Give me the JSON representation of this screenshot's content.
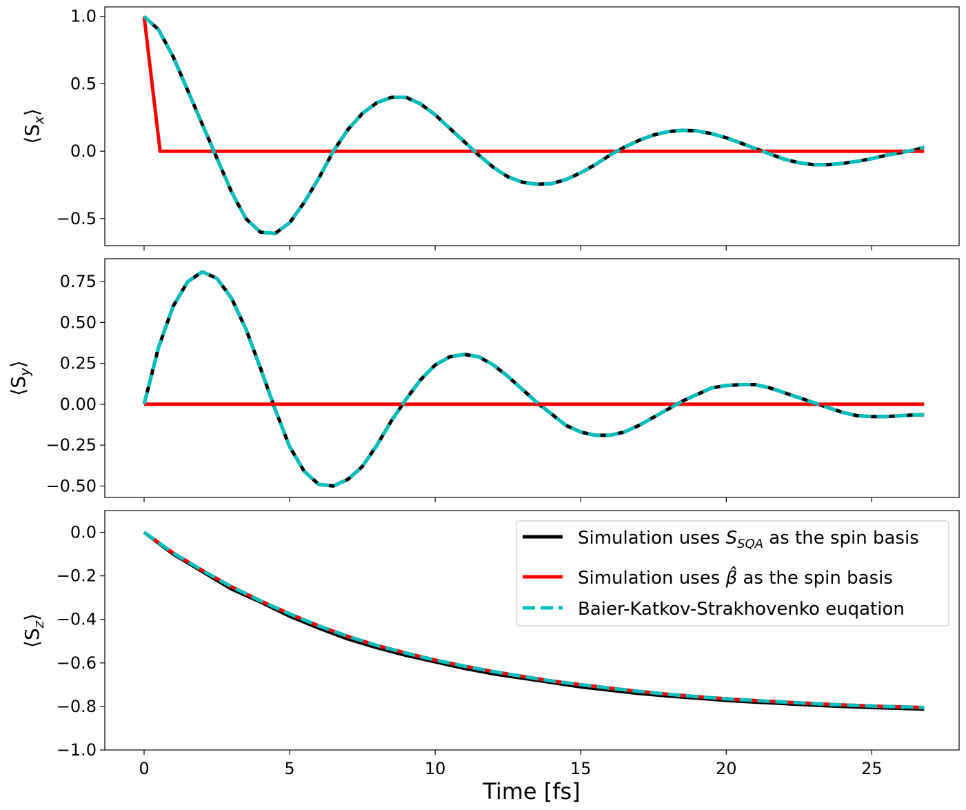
{
  "chart_data": [
    {
      "type": "line",
      "panel": "top",
      "ylabel": "⟨S_x⟩",
      "ylabel_main": "⟨S",
      "ylabel_sub": "x",
      "ylabel_close": "⟩",
      "xlim": [
        -1.35,
        28.0
      ],
      "ylim": [
        -0.7,
        1.07
      ],
      "yticks": [
        1.0,
        0.5,
        0.0,
        -0.5
      ],
      "ytick_labels": [
        "1.0",
        "0.5",
        "0.0",
        "−0.5"
      ],
      "series": [
        {
          "name": "Simulation uses S_SQA as the spin basis",
          "color": "#000000",
          "style": "solid",
          "x": [
            0,
            0.5,
            1,
            1.5,
            2,
            2.5,
            3,
            3.5,
            4,
            4.5,
            5,
            5.5,
            6,
            6.5,
            7,
            7.5,
            8,
            8.5,
            9,
            9.5,
            10,
            10.5,
            11,
            11.5,
            12,
            12.5,
            13,
            13.5,
            14,
            14.5,
            15,
            15.5,
            16,
            16.5,
            17,
            17.5,
            18,
            18.5,
            19,
            19.5,
            20,
            20.5,
            21,
            21.5,
            22,
            22.5,
            23,
            23.5,
            24,
            24.5,
            25,
            25.5,
            26,
            26.5,
            26.8
          ],
          "y": [
            1.0,
            0.9,
            0.7,
            0.45,
            0.2,
            -0.05,
            -0.3,
            -0.5,
            -0.6,
            -0.61,
            -0.53,
            -0.38,
            -0.2,
            0.0,
            0.16,
            0.28,
            0.36,
            0.4,
            0.4,
            0.35,
            0.27,
            0.17,
            0.07,
            -0.03,
            -0.12,
            -0.19,
            -0.23,
            -0.245,
            -0.24,
            -0.21,
            -0.16,
            -0.1,
            -0.03,
            0.03,
            0.08,
            0.12,
            0.145,
            0.155,
            0.15,
            0.13,
            0.1,
            0.06,
            0.02,
            -0.02,
            -0.06,
            -0.085,
            -0.1,
            -0.1,
            -0.09,
            -0.075,
            -0.055,
            -0.03,
            -0.01,
            0.01,
            0.03
          ]
        },
        {
          "name": "Simulation uses β̂ as the spin basis",
          "color": "#ff0000",
          "style": "solid",
          "x": [
            0,
            0.55,
            26.8
          ],
          "y": [
            1.0,
            0.0,
            0.0
          ]
        },
        {
          "name": "Baier-Katkov-Strakhovenko euqation",
          "color": "#00bfbf",
          "style": "dashed",
          "x": [
            0,
            0.5,
            1,
            1.5,
            2,
            2.5,
            3,
            3.5,
            4,
            4.5,
            5,
            5.5,
            6,
            6.5,
            7,
            7.5,
            8,
            8.5,
            9,
            9.5,
            10,
            10.5,
            11,
            11.5,
            12,
            12.5,
            13,
            13.5,
            14,
            14.5,
            15,
            15.5,
            16,
            16.5,
            17,
            17.5,
            18,
            18.5,
            19,
            19.5,
            20,
            20.5,
            21,
            21.5,
            22,
            22.5,
            23,
            23.5,
            24,
            24.5,
            25,
            25.5,
            26,
            26.5,
            26.8
          ],
          "y": [
            1.0,
            0.9,
            0.7,
            0.45,
            0.2,
            -0.05,
            -0.3,
            -0.5,
            -0.6,
            -0.61,
            -0.53,
            -0.38,
            -0.2,
            0.0,
            0.16,
            0.28,
            0.36,
            0.4,
            0.4,
            0.35,
            0.27,
            0.17,
            0.07,
            -0.03,
            -0.12,
            -0.19,
            -0.23,
            -0.245,
            -0.24,
            -0.21,
            -0.16,
            -0.1,
            -0.03,
            0.03,
            0.08,
            0.12,
            0.145,
            0.155,
            0.15,
            0.13,
            0.1,
            0.06,
            0.02,
            -0.02,
            -0.06,
            -0.085,
            -0.1,
            -0.1,
            -0.09,
            -0.075,
            -0.055,
            -0.03,
            -0.01,
            0.01,
            0.03
          ]
        }
      ]
    },
    {
      "type": "line",
      "panel": "middle",
      "ylabel": "⟨S_y⟩",
      "ylabel_main": "⟨S",
      "ylabel_sub": "y",
      "ylabel_close": "⟩",
      "xlim": [
        -1.35,
        28.0
      ],
      "ylim": [
        -0.57,
        0.89
      ],
      "yticks": [
        0.75,
        0.5,
        0.25,
        0.0,
        -0.25,
        -0.5
      ],
      "ytick_labels": [
        "0.75",
        "0.50",
        "0.25",
        "0.00",
        "−0.25",
        "−0.50"
      ],
      "series": [
        {
          "name": "Simulation uses S_SQA as the spin basis",
          "color": "#000000",
          "style": "solid",
          "x": [
            0,
            0.5,
            1,
            1.5,
            2,
            2.5,
            3,
            3.5,
            4,
            4.5,
            5,
            5.5,
            6,
            6.5,
            7,
            7.5,
            8,
            8.5,
            9,
            9.5,
            10,
            10.5,
            11,
            11.5,
            12,
            12.5,
            13,
            13.5,
            14,
            14.5,
            15,
            15.5,
            16,
            16.5,
            17,
            17.5,
            18,
            18.5,
            19,
            19.5,
            20,
            20.5,
            21,
            21.5,
            22,
            22.5,
            23,
            23.5,
            24,
            24.5,
            25,
            25.5,
            26,
            26.5,
            26.8
          ],
          "y": [
            0.0,
            0.35,
            0.6,
            0.75,
            0.81,
            0.77,
            0.65,
            0.46,
            0.22,
            -0.03,
            -0.26,
            -0.41,
            -0.49,
            -0.5,
            -0.46,
            -0.38,
            -0.25,
            -0.1,
            0.03,
            0.15,
            0.24,
            0.29,
            0.305,
            0.29,
            0.24,
            0.17,
            0.09,
            0.01,
            -0.06,
            -0.13,
            -0.17,
            -0.19,
            -0.19,
            -0.17,
            -0.13,
            -0.08,
            -0.03,
            0.02,
            0.06,
            0.1,
            0.115,
            0.12,
            0.12,
            0.1,
            0.07,
            0.04,
            0.01,
            -0.02,
            -0.05,
            -0.07,
            -0.075,
            -0.075,
            -0.07,
            -0.065,
            -0.065
          ]
        },
        {
          "name": "Simulation uses β̂ as the spin basis",
          "color": "#ff0000",
          "style": "solid",
          "x": [
            0,
            26.8
          ],
          "y": [
            0.0,
            0.0
          ]
        },
        {
          "name": "Baier-Katkov-Strakhovenko euqation",
          "color": "#00bfbf",
          "style": "dashed",
          "x": [
            0,
            0.5,
            1,
            1.5,
            2,
            2.5,
            3,
            3.5,
            4,
            4.5,
            5,
            5.5,
            6,
            6.5,
            7,
            7.5,
            8,
            8.5,
            9,
            9.5,
            10,
            10.5,
            11,
            11.5,
            12,
            12.5,
            13,
            13.5,
            14,
            14.5,
            15,
            15.5,
            16,
            16.5,
            17,
            17.5,
            18,
            18.5,
            19,
            19.5,
            20,
            20.5,
            21,
            21.5,
            22,
            22.5,
            23,
            23.5,
            24,
            24.5,
            25,
            25.5,
            26,
            26.5,
            26.8
          ],
          "y": [
            0.0,
            0.35,
            0.6,
            0.75,
            0.81,
            0.77,
            0.65,
            0.46,
            0.22,
            -0.03,
            -0.26,
            -0.41,
            -0.49,
            -0.5,
            -0.46,
            -0.38,
            -0.25,
            -0.1,
            0.03,
            0.15,
            0.24,
            0.29,
            0.305,
            0.29,
            0.24,
            0.17,
            0.09,
            0.01,
            -0.06,
            -0.13,
            -0.17,
            -0.19,
            -0.19,
            -0.17,
            -0.13,
            -0.08,
            -0.03,
            0.02,
            0.06,
            0.1,
            0.115,
            0.12,
            0.12,
            0.1,
            0.07,
            0.04,
            0.01,
            -0.02,
            -0.05,
            -0.07,
            -0.075,
            -0.075,
            -0.07,
            -0.065,
            -0.065
          ]
        }
      ]
    },
    {
      "type": "line",
      "panel": "bottom",
      "ylabel": "⟨S_z⟩",
      "ylabel_main": "⟨S",
      "ylabel_sub": "z",
      "ylabel_close": "⟩",
      "xlabel": "Time [fs]",
      "xlim": [
        -1.35,
        28.0
      ],
      "ylim": [
        -1.0,
        0.1
      ],
      "xticks": [
        0,
        5,
        10,
        15,
        20,
        25
      ],
      "xtick_labels": [
        "0",
        "5",
        "10",
        "15",
        "20",
        "25"
      ],
      "yticks": [
        0.0,
        -0.2,
        -0.4,
        -0.6,
        -0.8,
        -1.0
      ],
      "ytick_labels": [
        "0.0",
        "−0.2",
        "−0.4",
        "−0.6",
        "−0.8",
        "−1.0"
      ],
      "legend_position": "top-right",
      "series": [
        {
          "name": "Simulation uses S_SQA as the spin basis",
          "color": "#000000",
          "style": "solid",
          "x": [
            0,
            1,
            2,
            3,
            4,
            5,
            6,
            7,
            8,
            9,
            10,
            11,
            12,
            13,
            14,
            15,
            16,
            17,
            18,
            19,
            20,
            21,
            22,
            23,
            24,
            25,
            26,
            26.8
          ],
          "y": [
            0.0,
            -0.1,
            -0.18,
            -0.26,
            -0.32,
            -0.385,
            -0.44,
            -0.49,
            -0.53,
            -0.565,
            -0.595,
            -0.625,
            -0.65,
            -0.67,
            -0.69,
            -0.71,
            -0.725,
            -0.74,
            -0.752,
            -0.762,
            -0.772,
            -0.78,
            -0.787,
            -0.794,
            -0.8,
            -0.805,
            -0.809,
            -0.812
          ]
        },
        {
          "name": "Simulation uses β̂ as the spin basis",
          "color": "#ff0000",
          "style": "solid",
          "x": [
            0,
            1,
            2,
            3,
            4,
            5,
            6,
            7,
            8,
            9,
            10,
            11,
            12,
            13,
            14,
            15,
            16,
            17,
            18,
            19,
            20,
            21,
            22,
            23,
            24,
            25,
            26,
            26.8
          ],
          "y": [
            0.0,
            -0.095,
            -0.175,
            -0.25,
            -0.315,
            -0.375,
            -0.43,
            -0.478,
            -0.52,
            -0.555,
            -0.587,
            -0.615,
            -0.64,
            -0.662,
            -0.683,
            -0.7,
            -0.716,
            -0.731,
            -0.744,
            -0.755,
            -0.765,
            -0.773,
            -0.78,
            -0.787,
            -0.793,
            -0.798,
            -0.802,
            -0.805
          ]
        },
        {
          "name": "Baier-Katkov-Strakhovenko euqation",
          "color": "#00bfbf",
          "style": "dashed",
          "x": [
            0,
            1,
            2,
            3,
            4,
            5,
            6,
            7,
            8,
            9,
            10,
            11,
            12,
            13,
            14,
            15,
            16,
            17,
            18,
            19,
            20,
            21,
            22,
            23,
            24,
            25,
            26,
            26.8
          ],
          "y": [
            0.0,
            -0.095,
            -0.175,
            -0.25,
            -0.315,
            -0.375,
            -0.43,
            -0.478,
            -0.52,
            -0.555,
            -0.587,
            -0.615,
            -0.64,
            -0.662,
            -0.683,
            -0.7,
            -0.716,
            -0.731,
            -0.744,
            -0.755,
            -0.765,
            -0.773,
            -0.78,
            -0.787,
            -0.793,
            -0.798,
            -0.802,
            -0.805
          ]
        }
      ]
    }
  ],
  "legend": {
    "entries": [
      {
        "prefix": "Simulation uses ",
        "math_main": "S",
        "math_sub": "SQA",
        "suffix": " as the spin basis",
        "color": "#000000",
        "style": "solid"
      },
      {
        "prefix": "Simulation uses ",
        "math_main": "β̂",
        "math_sub": "",
        "suffix": " as the spin basis",
        "color": "#ff0000",
        "style": "solid"
      },
      {
        "prefix": "Baier-Katkov-Strakhovenko euqation",
        "math_main": "",
        "math_sub": "",
        "suffix": "",
        "color": "#00bfbf",
        "style": "dashed"
      }
    ]
  }
}
